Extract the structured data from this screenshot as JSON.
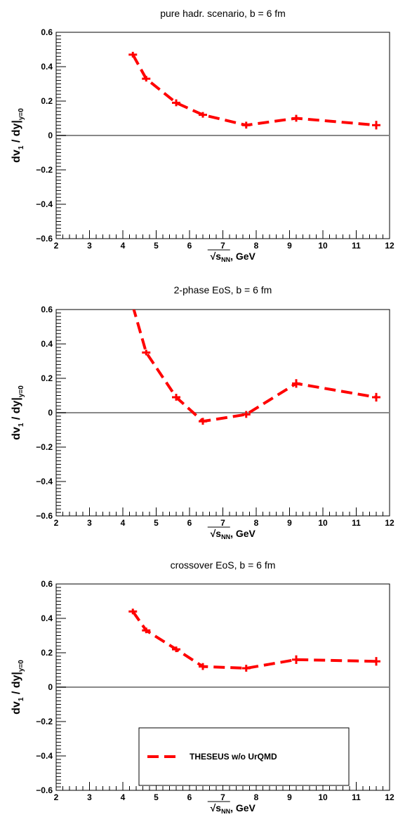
{
  "chart_data": [
    {
      "type": "line",
      "title": "pure hadr. scenario, b = 6 fm",
      "xlabel": "√s_NN, GeV",
      "ylabel": "dv_1 / dy|_y=0",
      "xlim": [
        2,
        12
      ],
      "ylim": [
        -0.6,
        0.6
      ],
      "x_ticks": [
        2,
        3,
        4,
        5,
        6,
        7,
        8,
        9,
        10,
        11,
        12
      ],
      "y_ticks": [
        -0.6,
        -0.4,
        -0.2,
        0,
        0.2,
        0.4,
        0.6
      ],
      "y_tick_labels": [
        "−0.6",
        "−0.4",
        "−0.2",
        "0",
        "0.2",
        "0.4",
        "0.6"
      ],
      "zero_line": true,
      "series": [
        {
          "color": "#ff0000",
          "style": "dashed",
          "x": [
            4.3,
            4.7,
            5.6,
            6.4,
            7.7,
            9.2,
            11.6
          ],
          "y": [
            0.47,
            0.33,
            0.19,
            0.12,
            0.06,
            0.1,
            0.06
          ],
          "yerr": [
            0.01,
            0.015,
            0.02,
            0.015,
            0.02,
            0.02,
            0.025
          ]
        }
      ]
    },
    {
      "type": "line",
      "title": "2-phase EoS, b = 6 fm",
      "xlabel": "√s_NN, GeV",
      "ylabel": "dv_1 / dy|_y=0",
      "xlim": [
        2,
        12
      ],
      "ylim": [
        -0.6,
        0.6
      ],
      "x_ticks": [
        2,
        3,
        4,
        5,
        6,
        7,
        8,
        9,
        10,
        11,
        12
      ],
      "y_ticks": [
        -0.6,
        -0.4,
        -0.2,
        0,
        0.2,
        0.4,
        0.6
      ],
      "y_tick_labels": [
        "−0.6",
        "−0.4",
        "−0.2",
        "0",
        "0.2",
        "0.4",
        "0.6"
      ],
      "zero_line": true,
      "series": [
        {
          "color": "#ff0000",
          "style": "dashed",
          "x": [
            4.3,
            4.7,
            5.6,
            6.4,
            7.7,
            9.2,
            11.6
          ],
          "y": [
            0.62,
            0.35,
            0.09,
            -0.05,
            -0.01,
            0.17,
            0.09
          ],
          "yerr": [
            0.01,
            0.015,
            0.02,
            0.02,
            0.02,
            0.025,
            0.025
          ]
        }
      ]
    },
    {
      "type": "line",
      "title": "crossover EoS, b = 6 fm",
      "xlabel": "√s_NN, GeV",
      "ylabel": "dv_1 / dy|_y=0",
      "xlim": [
        2,
        12
      ],
      "ylim": [
        -0.6,
        0.6
      ],
      "x_ticks": [
        2,
        3,
        4,
        5,
        6,
        7,
        8,
        9,
        10,
        11,
        12
      ],
      "y_ticks": [
        -0.6,
        -0.4,
        -0.2,
        0,
        0.2,
        0.4,
        0.6
      ],
      "y_tick_labels": [
        "−0.6",
        "−0.4",
        "−0.2",
        "0",
        "0.2",
        "0.4",
        "0.6"
      ],
      "zero_line": true,
      "legend": {
        "placement": "bottom-center",
        "entries": [
          "THESEUS w/o UrQMD"
        ]
      },
      "series": [
        {
          "name": "THESEUS w/o UrQMD",
          "color": "#ff0000",
          "style": "dashed",
          "x": [
            4.3,
            4.7,
            5.6,
            6.4,
            7.7,
            9.2,
            11.6
          ],
          "y": [
            0.44,
            0.33,
            0.22,
            0.12,
            0.11,
            0.16,
            0.15
          ],
          "yerr": [
            0.01,
            0.015,
            0.015,
            0.02,
            0.02,
            0.025,
            0.025
          ]
        }
      ]
    }
  ]
}
